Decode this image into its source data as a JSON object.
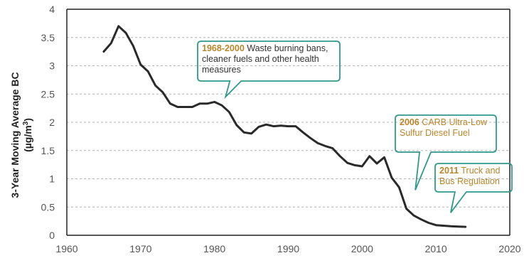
{
  "chart_data": {
    "type": "line",
    "xlabel": "",
    "ylabel": "3-Year Moving  Average BC",
    "ylabel_unit_prefix": "(µg/m",
    "ylabel_unit_sup": "3",
    "ylabel_unit_suffix": ")",
    "xlim": [
      1960,
      2020
    ],
    "ylim": [
      0,
      4
    ],
    "x_ticks": [
      "1960",
      "1970",
      "1980",
      "1990",
      "2000",
      "2010",
      "2020"
    ],
    "y_ticks": [
      "0",
      "0.5",
      "1",
      "1.5",
      "2",
      "2.5",
      "3",
      "3.5",
      "4"
    ],
    "grid": "horizontal-dashed",
    "series": [
      {
        "x": [
          1965,
          1966,
          1967,
          1968,
          1969,
          1970,
          1971,
          1972,
          1973,
          1974,
          1975,
          1976,
          1977,
          1978,
          1979,
          1980,
          1981,
          1982,
          1983,
          1984,
          1985,
          1986,
          1987,
          1988,
          1989,
          1990,
          1991,
          1992,
          1993,
          1994,
          1995,
          1996,
          1997,
          1998,
          1999,
          2000,
          2001,
          2002,
          2003,
          2004,
          2005,
          2006,
          2007,
          2008,
          2009,
          2010,
          2011,
          2012,
          2013,
          2014
        ],
        "values": [
          3.25,
          3.4,
          3.7,
          3.58,
          3.35,
          3.02,
          2.9,
          2.65,
          2.53,
          2.33,
          2.27,
          2.27,
          2.27,
          2.33,
          2.33,
          2.36,
          2.3,
          2.18,
          1.95,
          1.82,
          1.8,
          1.92,
          1.96,
          1.93,
          1.94,
          1.93,
          1.93,
          1.82,
          1.72,
          1.63,
          1.58,
          1.54,
          1.4,
          1.28,
          1.24,
          1.22,
          1.4,
          1.27,
          1.38,
          1.02,
          0.85,
          0.47,
          0.35,
          0.28,
          0.22,
          0.18,
          0.17,
          0.16,
          0.155,
          0.15
        ]
      }
    ],
    "annotations": [
      {
        "id": "a1",
        "bold": "1968-2000",
        "text": " Waste burning bans, cleaner fuels and other health measures",
        "pointer_x": 1981.5,
        "pointer_y": 2.45
      },
      {
        "id": "a2",
        "bold": "2006",
        "text": " CARB Ultra-Low Sulfur Diesel Fuel",
        "pointer_x": 2007.2,
        "pointer_y": 0.8
      },
      {
        "id": "a3",
        "bold": "2011",
        "text": " Truck and Bus Regulation",
        "pointer_x": 2012.0,
        "pointer_y": 0.4
      }
    ]
  },
  "colors": {
    "line": "#2a2a2a",
    "grid": "#b5b5b5",
    "axis": "#222222",
    "annotation_border": "#2f9a8a",
    "annotation_highlight": "#b8862a"
  }
}
